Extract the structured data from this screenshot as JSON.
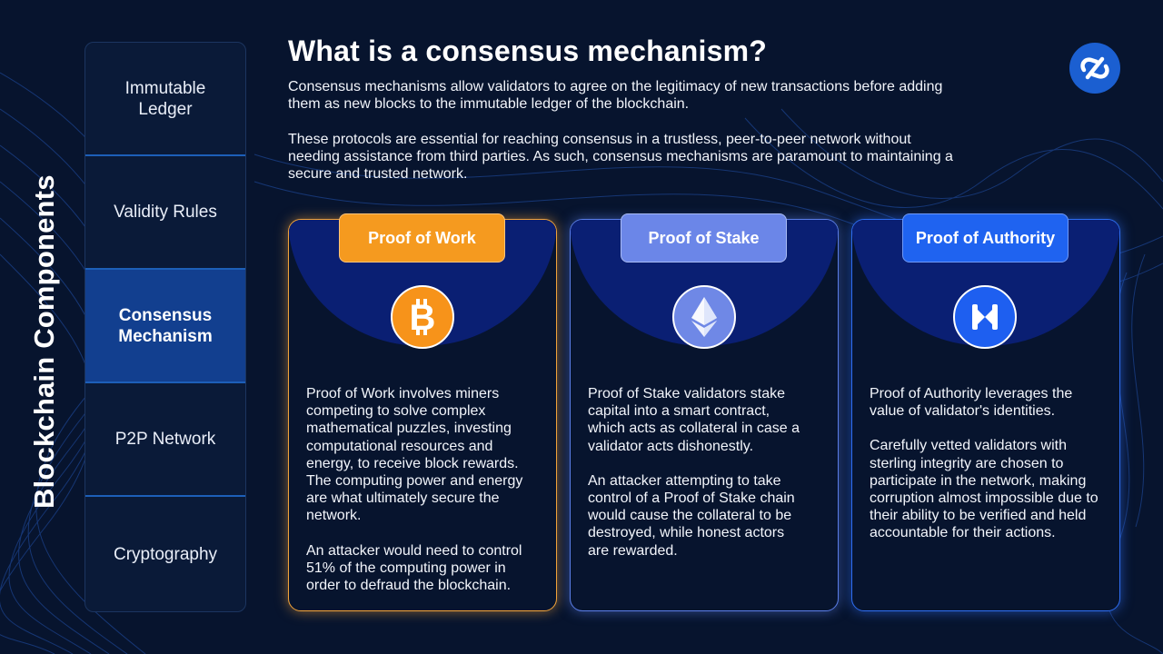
{
  "title": "What is a consensus mechanism?",
  "intro": {
    "p1": "Consensus mechanisms allow validators to agree on the legitimacy of new transactions before adding them as new blocks to the immutable ledger of the blockchain.",
    "p2": "These protocols are essential for reaching consensus in a trustless, peer-to-peer network without needing assistance from third parties. As such, consensus mechanisms are paramount to maintaining a secure and trusted network."
  },
  "sidebar": {
    "heading": "Blockchain Components",
    "items": [
      {
        "label": "Immutable Ledger"
      },
      {
        "label": "Validity Rules"
      },
      {
        "label": "Consensus Mechanism",
        "active": true
      },
      {
        "label": "P2P Network"
      },
      {
        "label": "Cryptography"
      }
    ]
  },
  "logo_icon": "swap-link-logo-icon",
  "cards": [
    {
      "title": "Proof of Work",
      "icon": "bitcoin-icon",
      "accent": "#f59a1f",
      "p1": "Proof of Work involves miners competing to solve complex mathematical puzzles, investing computational resources and energy, to receive block rewards. The computing power and energy are what ultimately secure the network.",
      "p2": "An attacker would need to control 51% of the computing power in order to defraud the blockchain."
    },
    {
      "title": "Proof of Stake",
      "icon": "ethereum-icon",
      "accent": "#6b86e8",
      "p1": "Proof of Stake validators stake capital into a smart contract, which acts as collateral in case a validator acts dishonestly.",
      "p2": "An attacker attempting to take control of a Proof of Stake chain would cause the collateral to be destroyed, while honest actors are rewarded."
    },
    {
      "title": "Proof of Authority",
      "icon": "authority-icon",
      "accent": "#1f63f0",
      "p1": "Proof of Authority leverages the value of validator's identities.",
      "p2": "Carefully vetted validators with sterling integrity are chosen to participate in the network, making corruption almost impossible due to their ability to be verified and held accountable for their actions."
    }
  ]
}
